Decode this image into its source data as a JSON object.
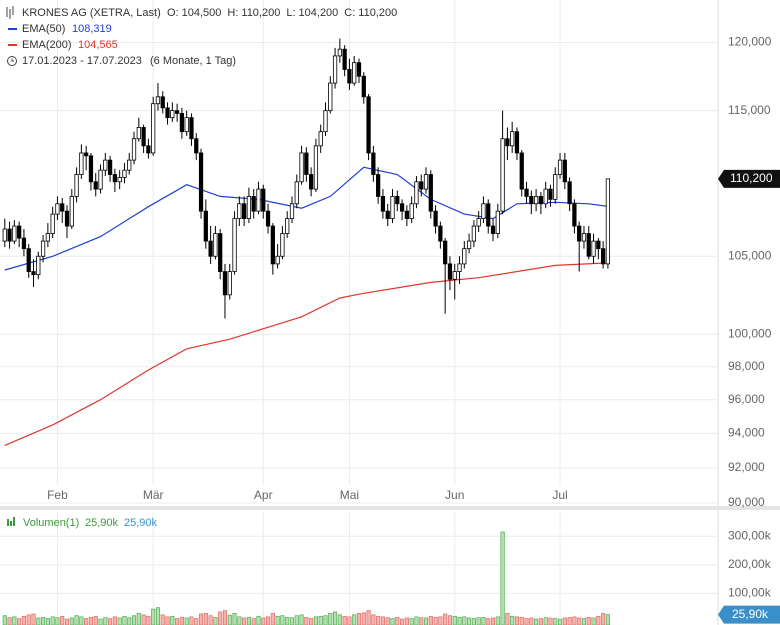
{
  "chart_data": {
    "type": "candlestick",
    "title": "KRONES AG (XETRA, Last)",
    "ohlc_legend": [
      {
        "label": "O:",
        "value": "104,500"
      },
      {
        "label": "H:",
        "value": "110,200"
      },
      {
        "label": "L:",
        "value": "104,200"
      },
      {
        "label": "C:",
        "value": "110,200"
      }
    ],
    "date_range": "17.01.2023 - 17.07.2023",
    "period_label": "(6 Monate, 1 Tag)",
    "log_scale": true,
    "grid": true,
    "up_color": "#ffffff",
    "down_color": "#000000",
    "candle_outline": "#000000",
    "candles": [
      [
        106000,
        107500,
        105600,
        106800
      ],
      [
        106800,
        107300,
        105500,
        106000
      ],
      [
        106000,
        107400,
        105800,
        107000
      ],
      [
        107000,
        107300,
        105600,
        106200
      ],
      [
        106200,
        106800,
        105000,
        105500
      ],
      [
        105500,
        105800,
        103600,
        104000
      ],
      [
        104000,
        104800,
        103000,
        103800
      ],
      [
        103800,
        105300,
        103500,
        105000
      ],
      [
        105000,
        106400,
        104600,
        106000
      ],
      [
        106000,
        107200,
        105600,
        106500
      ],
      [
        106500,
        108300,
        106200,
        107800
      ],
      [
        107800,
        109000,
        107400,
        108500
      ],
      [
        108500,
        108900,
        107200,
        108000
      ],
      [
        108000,
        108400,
        106200,
        107000
      ],
      [
        107000,
        109500,
        106800,
        109000
      ],
      [
        109000,
        111000,
        108600,
        110500
      ],
      [
        110500,
        112600,
        110200,
        112000
      ],
      [
        112000,
        112500,
        110800,
        111800
      ],
      [
        111800,
        112000,
        109400,
        110000
      ],
      [
        110000,
        110600,
        109000,
        109500
      ],
      [
        109500,
        111200,
        109200,
        110800
      ],
      [
        110800,
        112000,
        110400,
        111500
      ],
      [
        111500,
        111800,
        110000,
        110500
      ],
      [
        110500,
        110900,
        109300,
        110000
      ],
      [
        110000,
        110800,
        109500,
        110300
      ],
      [
        110300,
        111300,
        109900,
        110800
      ],
      [
        110800,
        112000,
        110500,
        111500
      ],
      [
        111500,
        113500,
        111200,
        113000
      ],
      [
        113000,
        114500,
        112800,
        113800
      ],
      [
        113800,
        114000,
        112000,
        112500
      ],
      [
        112500,
        113000,
        111600,
        112000
      ],
      [
        112000,
        116000,
        111800,
        115500
      ],
      [
        115500,
        117000,
        115000,
        116000
      ],
      [
        116000,
        116400,
        114800,
        115200
      ],
      [
        115200,
        115600,
        114000,
        114500
      ],
      [
        114500,
        115600,
        114200,
        115000
      ],
      [
        115000,
        115500,
        114200,
        114800
      ],
      [
        114800,
        115200,
        113000,
        113500
      ],
      [
        113500,
        115000,
        113200,
        114500
      ],
      [
        114500,
        114800,
        112500,
        113000
      ],
      [
        113000,
        113400,
        111500,
        112000
      ],
      [
        112000,
        112300,
        107500,
        108000
      ],
      [
        108000,
        108800,
        105500,
        106000
      ],
      [
        106000,
        107000,
        104500,
        105000
      ],
      [
        105000,
        107000,
        104800,
        106500
      ],
      [
        106500,
        106800,
        103500,
        104000
      ],
      [
        104000,
        104500,
        101000,
        102500
      ],
      [
        102500,
        104500,
        102200,
        104000
      ],
      [
        104000,
        108000,
        103800,
        107500
      ],
      [
        107500,
        109000,
        107000,
        108500
      ],
      [
        108500,
        109000,
        107000,
        107500
      ],
      [
        107500,
        109600,
        107200,
        109000
      ],
      [
        109000,
        109500,
        107500,
        108000
      ],
      [
        108000,
        110000,
        107800,
        109500
      ],
      [
        109500,
        109800,
        107500,
        108000
      ],
      [
        108000,
        108500,
        106500,
        107000
      ],
      [
        107000,
        107200,
        103800,
        104500
      ],
      [
        104500,
        105800,
        104200,
        105000
      ],
      [
        105000,
        107000,
        104800,
        106500
      ],
      [
        106500,
        108000,
        106200,
        107500
      ],
      [
        107500,
        109000,
        107200,
        108500
      ],
      [
        108500,
        110500,
        108200,
        110000
      ],
      [
        110000,
        112500,
        109800,
        112000
      ],
      [
        112000,
        112400,
        110000,
        110500
      ],
      [
        110500,
        111000,
        109000,
        109500
      ],
      [
        109500,
        113000,
        109300,
        112500
      ],
      [
        112500,
        114000,
        112000,
        113500
      ],
      [
        113500,
        115600,
        113200,
        115000
      ],
      [
        115000,
        117500,
        114800,
        117000
      ],
      [
        117000,
        119600,
        116600,
        119000
      ],
      [
        119000,
        120300,
        118500,
        119500
      ],
      [
        119500,
        119800,
        117500,
        118000
      ],
      [
        118000,
        118800,
        116500,
        117000
      ],
      [
        117000,
        119000,
        116800,
        118500
      ],
      [
        118500,
        118800,
        117000,
        117500
      ],
      [
        117500,
        117800,
        115500,
        116000
      ],
      [
        116000,
        116200,
        111500,
        112000
      ],
      [
        112000,
        112500,
        110000,
        110500
      ],
      [
        110500,
        111000,
        108500,
        109000
      ],
      [
        109000,
        109500,
        107500,
        108000
      ],
      [
        108000,
        108500,
        107000,
        107500
      ],
      [
        107500,
        109500,
        107200,
        109000
      ],
      [
        109000,
        109400,
        108000,
        108500
      ],
      [
        108500,
        108800,
        107400,
        108000
      ],
      [
        108000,
        108400,
        107000,
        107500
      ],
      [
        107500,
        109000,
        107200,
        108500
      ],
      [
        108500,
        110400,
        108200,
        110000
      ],
      [
        110000,
        110500,
        109000,
        109500
      ],
      [
        109500,
        111000,
        109200,
        110500
      ],
      [
        110500,
        110800,
        107500,
        108000
      ],
      [
        108000,
        108400,
        106500,
        107000
      ],
      [
        107000,
        107300,
        105500,
        106000
      ],
      [
        106000,
        106200,
        101300,
        104500
      ],
      [
        104500,
        105000,
        102800,
        103500
      ],
      [
        103500,
        104500,
        102200,
        104000
      ],
      [
        104000,
        105000,
        103200,
        104500
      ],
      [
        104500,
        106000,
        104200,
        105500
      ],
      [
        105500,
        106500,
        105200,
        106000
      ],
      [
        106000,
        107400,
        105600,
        107000
      ],
      [
        107000,
        108000,
        106600,
        107500
      ],
      [
        107500,
        109000,
        107200,
        108500
      ],
      [
        108500,
        108800,
        106500,
        107000
      ],
      [
        107000,
        107500,
        106000,
        106500
      ],
      [
        106500,
        108500,
        106200,
        108000
      ],
      [
        108000,
        115000,
        107800,
        113000
      ],
      [
        113000,
        113800,
        111500,
        112500
      ],
      [
        112500,
        114200,
        112000,
        113500
      ],
      [
        113500,
        113800,
        111500,
        112000
      ],
      [
        112000,
        112200,
        109000,
        109500
      ],
      [
        109500,
        110000,
        108500,
        109000
      ],
      [
        109000,
        109400,
        107800,
        108500
      ],
      [
        108500,
        109500,
        108000,
        109000
      ],
      [
        109000,
        109300,
        107800,
        108500
      ],
      [
        108500,
        110000,
        108200,
        109500
      ],
      [
        109500,
        109800,
        108300,
        108800
      ],
      [
        108800,
        111000,
        108500,
        110500
      ],
      [
        110500,
        112000,
        110200,
        111500
      ],
      [
        111500,
        112000,
        109500,
        110000
      ],
      [
        110000,
        110300,
        108000,
        108500
      ],
      [
        108500,
        108800,
        106500,
        107000
      ],
      [
        107000,
        107300,
        104000,
        106000
      ],
      [
        106000,
        107000,
        105500,
        106500
      ],
      [
        106500,
        107000,
        104800,
        105000
      ],
      [
        105000,
        106500,
        104500,
        106000
      ],
      [
        106000,
        106200,
        104800,
        105500
      ],
      [
        105500,
        106000,
        104200,
        104500
      ],
      [
        104500,
        110200,
        104200,
        110200
      ]
    ],
    "series": [
      {
        "name": "EMA(50)",
        "color": "#1f3fd6",
        "value_label": "108,319",
        "x": [
          0,
          10,
          20,
          30,
          38,
          45,
          53,
          62,
          68,
          75,
          82,
          89,
          96,
          102,
          107,
          115,
          122,
          126
        ],
        "values": [
          104100,
          105000,
          106300,
          108300,
          109800,
          109000,
          108800,
          108200,
          109000,
          111000,
          110500,
          108800,
          107800,
          107500,
          108500,
          108600,
          108500,
          108319
        ]
      },
      {
        "name": "EMA(200)",
        "color": "#e0362c",
        "value_label": "104,565",
        "x": [
          0,
          10,
          20,
          30,
          38,
          47,
          62,
          70,
          75,
          89,
          99,
          115,
          126
        ],
        "values": [
          93300,
          94500,
          96000,
          97800,
          99100,
          99700,
          101100,
          102300,
          102600,
          103300,
          103600,
          104400,
          104565
        ]
      }
    ],
    "xlim": [
      -1,
      149
    ],
    "xticks": [
      {
        "value": 11,
        "label": "Feb"
      },
      {
        "value": 31,
        "label": "Mär"
      },
      {
        "value": 54,
        "label": "Apr"
      },
      {
        "value": 72,
        "label": "Mai"
      },
      {
        "value": 94,
        "label": "Jun"
      },
      {
        "value": 116,
        "label": "Jul"
      }
    ],
    "ylim": [
      90000,
      123000
    ],
    "yticks": [
      {
        "value": 90000,
        "label": "90,000"
      },
      {
        "value": 92000,
        "label": "92,000"
      },
      {
        "value": 94000,
        "label": "94,000"
      },
      {
        "value": 96000,
        "label": "96,000"
      },
      {
        "value": 98000,
        "label": "98,000"
      },
      {
        "value": 100000,
        "label": "100,000"
      },
      {
        "value": 105000,
        "label": "105,000"
      },
      {
        "value": 115000,
        "label": "115,000"
      },
      {
        "value": 120000,
        "label": "120,000"
      }
    ],
    "last_price_label": "110,200",
    "volume_name": "Volumen(1)",
    "volume_value_labels": [
      "25,90k",
      "25,90k"
    ],
    "volume_colors": {
      "up_fill": "#b5dfb0",
      "up_stroke": "#4caf50",
      "down_fill": "#f5b3ae",
      "down_stroke": "#e06c66",
      "legend": "#3c9a3c",
      "legend_alt": "#3a8fc8"
    },
    "volumes": [
      22000,
      15000,
      18000,
      12000,
      20000,
      25000,
      28000,
      14000,
      16000,
      12000,
      18000,
      15000,
      20000,
      10000,
      14000,
      22000,
      18000,
      12000,
      16000,
      20000,
      10000,
      15000,
      12000,
      18000,
      14000,
      20000,
      15000,
      22000,
      30000,
      25000,
      20000,
      45000,
      50000,
      25000,
      18000,
      20000,
      12000,
      16000,
      14000,
      18000,
      12000,
      28000,
      30000,
      22000,
      16000,
      35000,
      40000,
      24000,
      30000,
      18000,
      14000,
      16000,
      12000,
      20000,
      14000,
      18000,
      30000,
      20000,
      22000,
      16000,
      15000,
      22000,
      25000,
      16000,
      12000,
      18000,
      20000,
      22000,
      30000,
      35000,
      25000,
      20000,
      18000,
      25000,
      30000,
      32000,
      40000,
      25000,
      20000,
      18000,
      15000,
      12000,
      16000,
      10000,
      14000,
      12000,
      18000,
      15000,
      14000,
      20000,
      16000,
      18000,
      28000,
      22000,
      20000,
      16000,
      18000,
      14000,
      12000,
      15000,
      16000,
      12000,
      14000,
      18000,
      315000,
      30000,
      20000,
      18000,
      16000,
      12000,
      14000,
      10000,
      12000,
      15000,
      14000,
      12000,
      10000,
      14000,
      16000,
      18000,
      14000,
      12000,
      16000,
      14000,
      20000,
      30000,
      25900
    ],
    "volume_ylim": [
      0,
      385000
    ],
    "volume_yticks": [
      {
        "value": 100000,
        "label": "100,00k"
      },
      {
        "value": 200000,
        "label": "200,00k"
      },
      {
        "value": 300000,
        "label": "300,00k"
      }
    ],
    "last_volume_label": "25,90k"
  }
}
